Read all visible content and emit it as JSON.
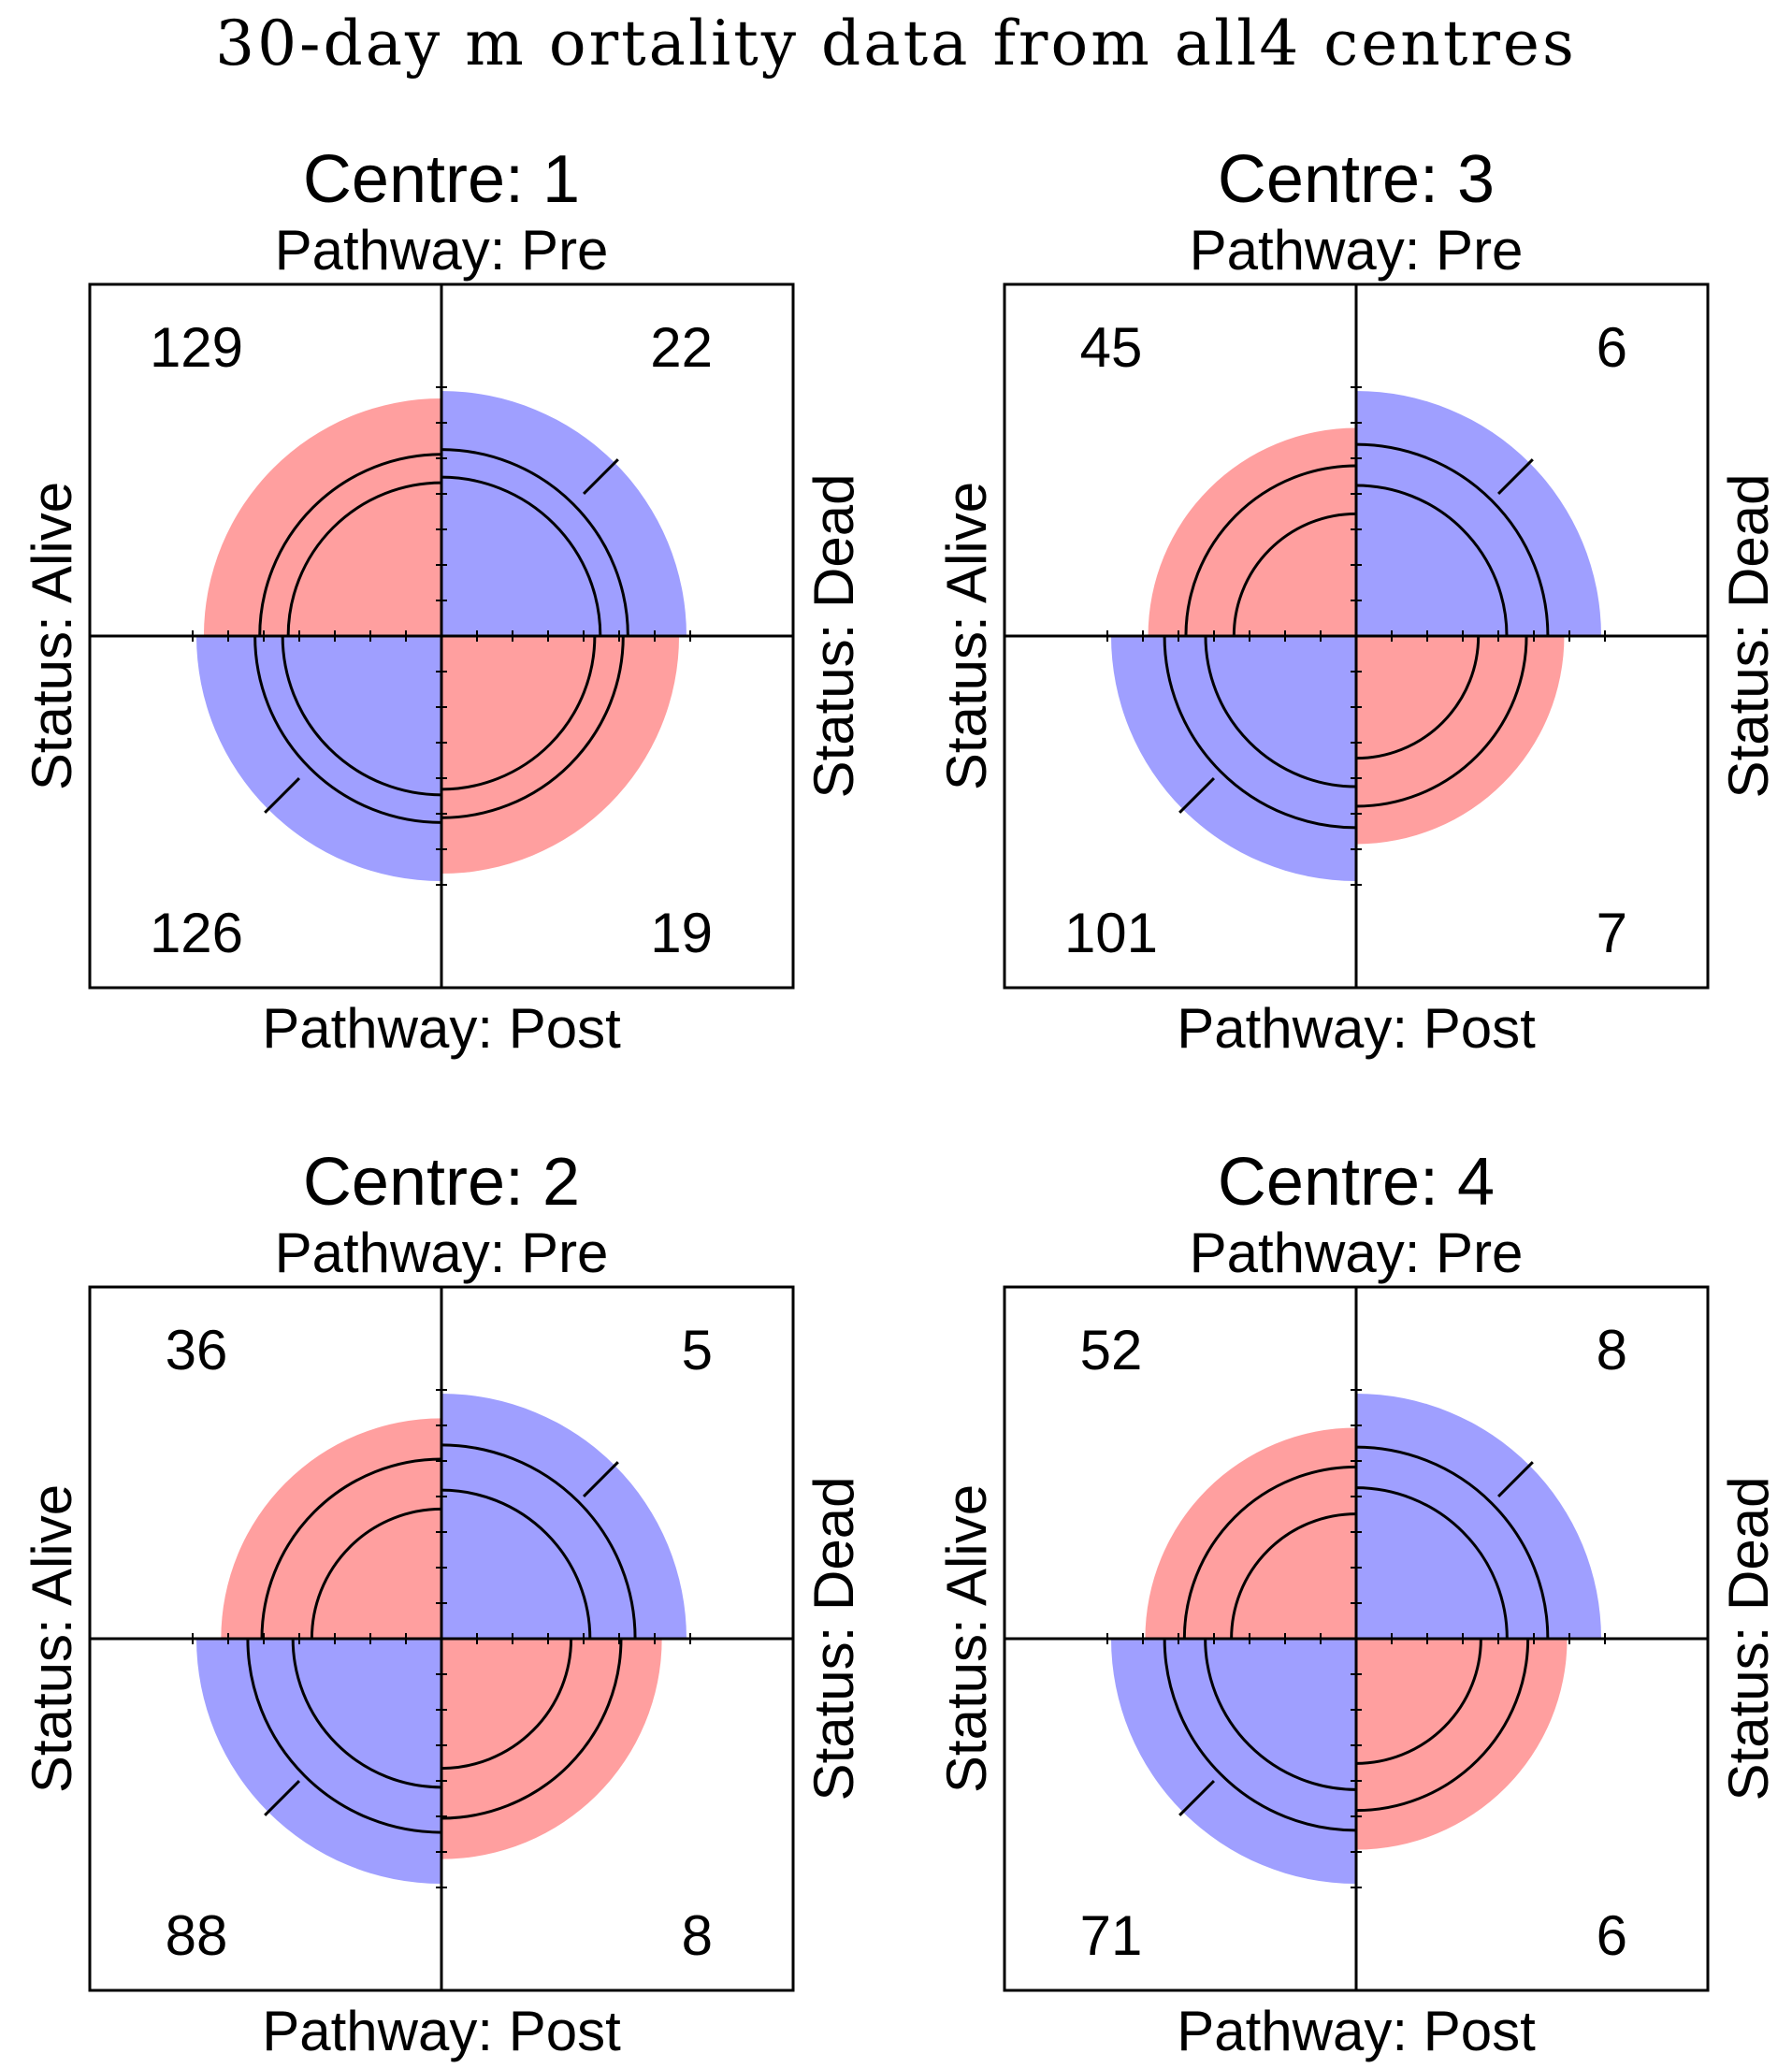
{
  "title": "30-day m ortality data from  all4 centres",
  "colors": {
    "positive": "#FF9F9F",
    "negative": "#9F9FFF",
    "line": "#000000",
    "background": "#FFFFFF"
  },
  "chart_data": {
    "type": "fourfold",
    "title": "30-day m ortality data from  all4 centres",
    "row_variable": "Pathway",
    "col_variable": "Status",
    "row_levels": [
      "Pre",
      "Post"
    ],
    "col_levels": [
      "Alive",
      "Dead"
    ],
    "labels": {
      "top": "Pathway: Pre",
      "bottom": "Pathway: Post",
      "left": "Status: Alive",
      "right": "Status: Dead"
    },
    "panels": [
      {
        "title": "Centre: 1",
        "counts": {
          "pre_alive": 129,
          "pre_dead": 22,
          "post_alive": 126,
          "post_dead": 19
        }
      },
      {
        "title": "Centre: 3",
        "counts": {
          "pre_alive": 45,
          "pre_dead": 6,
          "post_alive": 101,
          "post_dead": 7
        }
      },
      {
        "title": "Centre: 2",
        "counts": {
          "pre_alive": 36,
          "pre_dead": 5,
          "post_alive": 88,
          "post_dead": 8
        }
      },
      {
        "title": "Centre: 4",
        "counts": {
          "pre_alive": 52,
          "pre_dead": 8,
          "post_alive": 71,
          "post_dead": 6
        }
      }
    ]
  }
}
